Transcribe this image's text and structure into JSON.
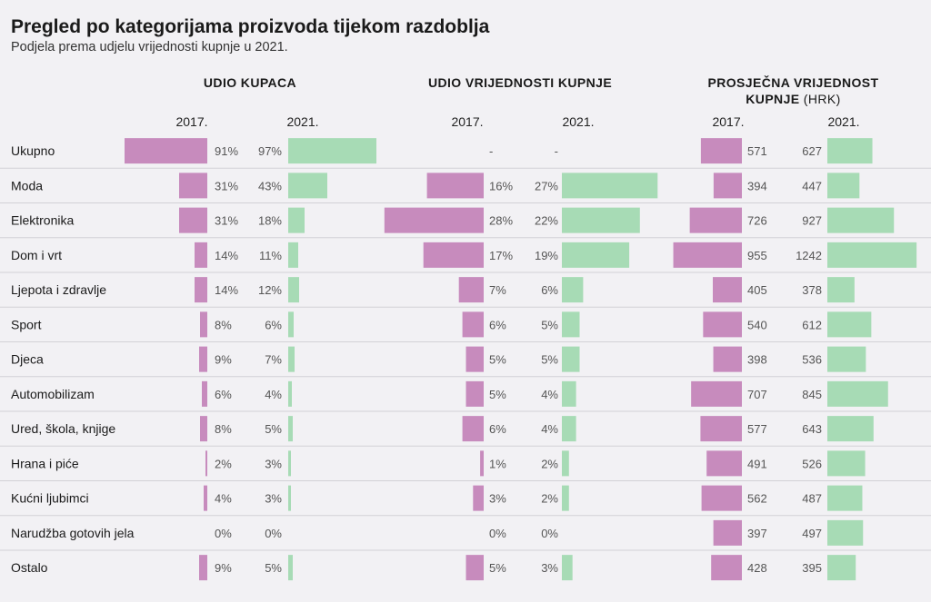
{
  "title": "Pregled po kategorijama proizvoda tijekom razdoblja",
  "subtitle": "Podjela prema udjelu vrijednosti kupnje u 2021.",
  "colors": {
    "year_2017": "#c78bbd",
    "year_2021": "#a7dbb5",
    "divider": "#d2d1d6",
    "value_text": "#555555",
    "label_text": "#1a1a1a"
  },
  "year_labels": [
    "2017.",
    "2021."
  ],
  "sections": [
    {
      "header": "UDIO KUPACA",
      "header_unit": ""
    },
    {
      "header": "UDIO VRIJEDNOSTI KUPNJE",
      "header_unit": ""
    },
    {
      "header": "PROSJEČNA VRIJEDNOST KUPNJE",
      "header_unit": "(HRK)"
    }
  ],
  "chart_data": {
    "type": "bar",
    "categories": [
      "Ukupno",
      "Moda",
      "Elektronika",
      "Dom i vrt",
      "Ljepota i zdravlje",
      "Sport",
      "Djeca",
      "Automobilizam",
      "Ured, škola, knjige",
      "Hrana i piće",
      "Kućni ljubimci",
      "Narudžba gotovih jela",
      "Ostalo"
    ],
    "panels": [
      {
        "name": "UDIO KUPACA",
        "unit": "%",
        "series": [
          {
            "name": "2017.",
            "values": [
              91,
              31,
              31,
              14,
              14,
              8,
              9,
              6,
              8,
              2,
              4,
              0,
              9
            ]
          },
          {
            "name": "2021.",
            "values": [
              97,
              43,
              18,
              11,
              12,
              6,
              7,
              4,
              5,
              3,
              3,
              0,
              5
            ]
          }
        ],
        "labels": [
          [
            "91%",
            "31%",
            "31%",
            "14%",
            "14%",
            "8%",
            "9%",
            "6%",
            "8%",
            "2%",
            "4%",
            "0%",
            "9%"
          ],
          [
            "97%",
            "43%",
            "18%",
            "11%",
            "12%",
            "6%",
            "7%",
            "4%",
            "5%",
            "3%",
            "3%",
            "0%",
            "5%"
          ]
        ]
      },
      {
        "name": "UDIO VRIJEDNOSTI KUPNJE",
        "unit": "%",
        "series": [
          {
            "name": "2017.",
            "values": [
              null,
              16,
              28,
              17,
              7,
              6,
              5,
              5,
              6,
              1,
              3,
              0,
              5
            ]
          },
          {
            "name": "2021.",
            "values": [
              null,
              27,
              22,
              19,
              6,
              5,
              5,
              4,
              4,
              2,
              2,
              0,
              3
            ]
          }
        ],
        "labels": [
          [
            "-",
            "16%",
            "28%",
            "17%",
            "7%",
            "6%",
            "5%",
            "5%",
            "6%",
            "1%",
            "3%",
            "0%",
            "5%"
          ],
          [
            "-",
            "27%",
            "22%",
            "19%",
            "6%",
            "5%",
            "5%",
            "4%",
            "4%",
            "2%",
            "2%",
            "0%",
            "3%"
          ]
        ]
      },
      {
        "name": "PROSJEČNA VRIJEDNOST KUPNJE (HRK)",
        "unit": "HRK",
        "series": [
          {
            "name": "2017.",
            "values": [
              571,
              394,
              726,
              955,
              405,
              540,
              398,
              707,
              577,
              491,
              562,
              397,
              428
            ]
          },
          {
            "name": "2021.",
            "values": [
              627,
              447,
              927,
              1242,
              378,
              612,
              536,
              845,
              643,
              526,
              487,
              497,
              395
            ]
          }
        ],
        "labels": [
          [
            "571",
            "394",
            "726",
            "955",
            "405",
            "540",
            "398",
            "707",
            "577",
            "491",
            "562",
            "397",
            "428"
          ],
          [
            "627",
            "447",
            "927",
            "1242",
            "378",
            "612",
            "536",
            "845",
            "643",
            "526",
            "487",
            "497",
            "395"
          ]
        ]
      }
    ]
  }
}
